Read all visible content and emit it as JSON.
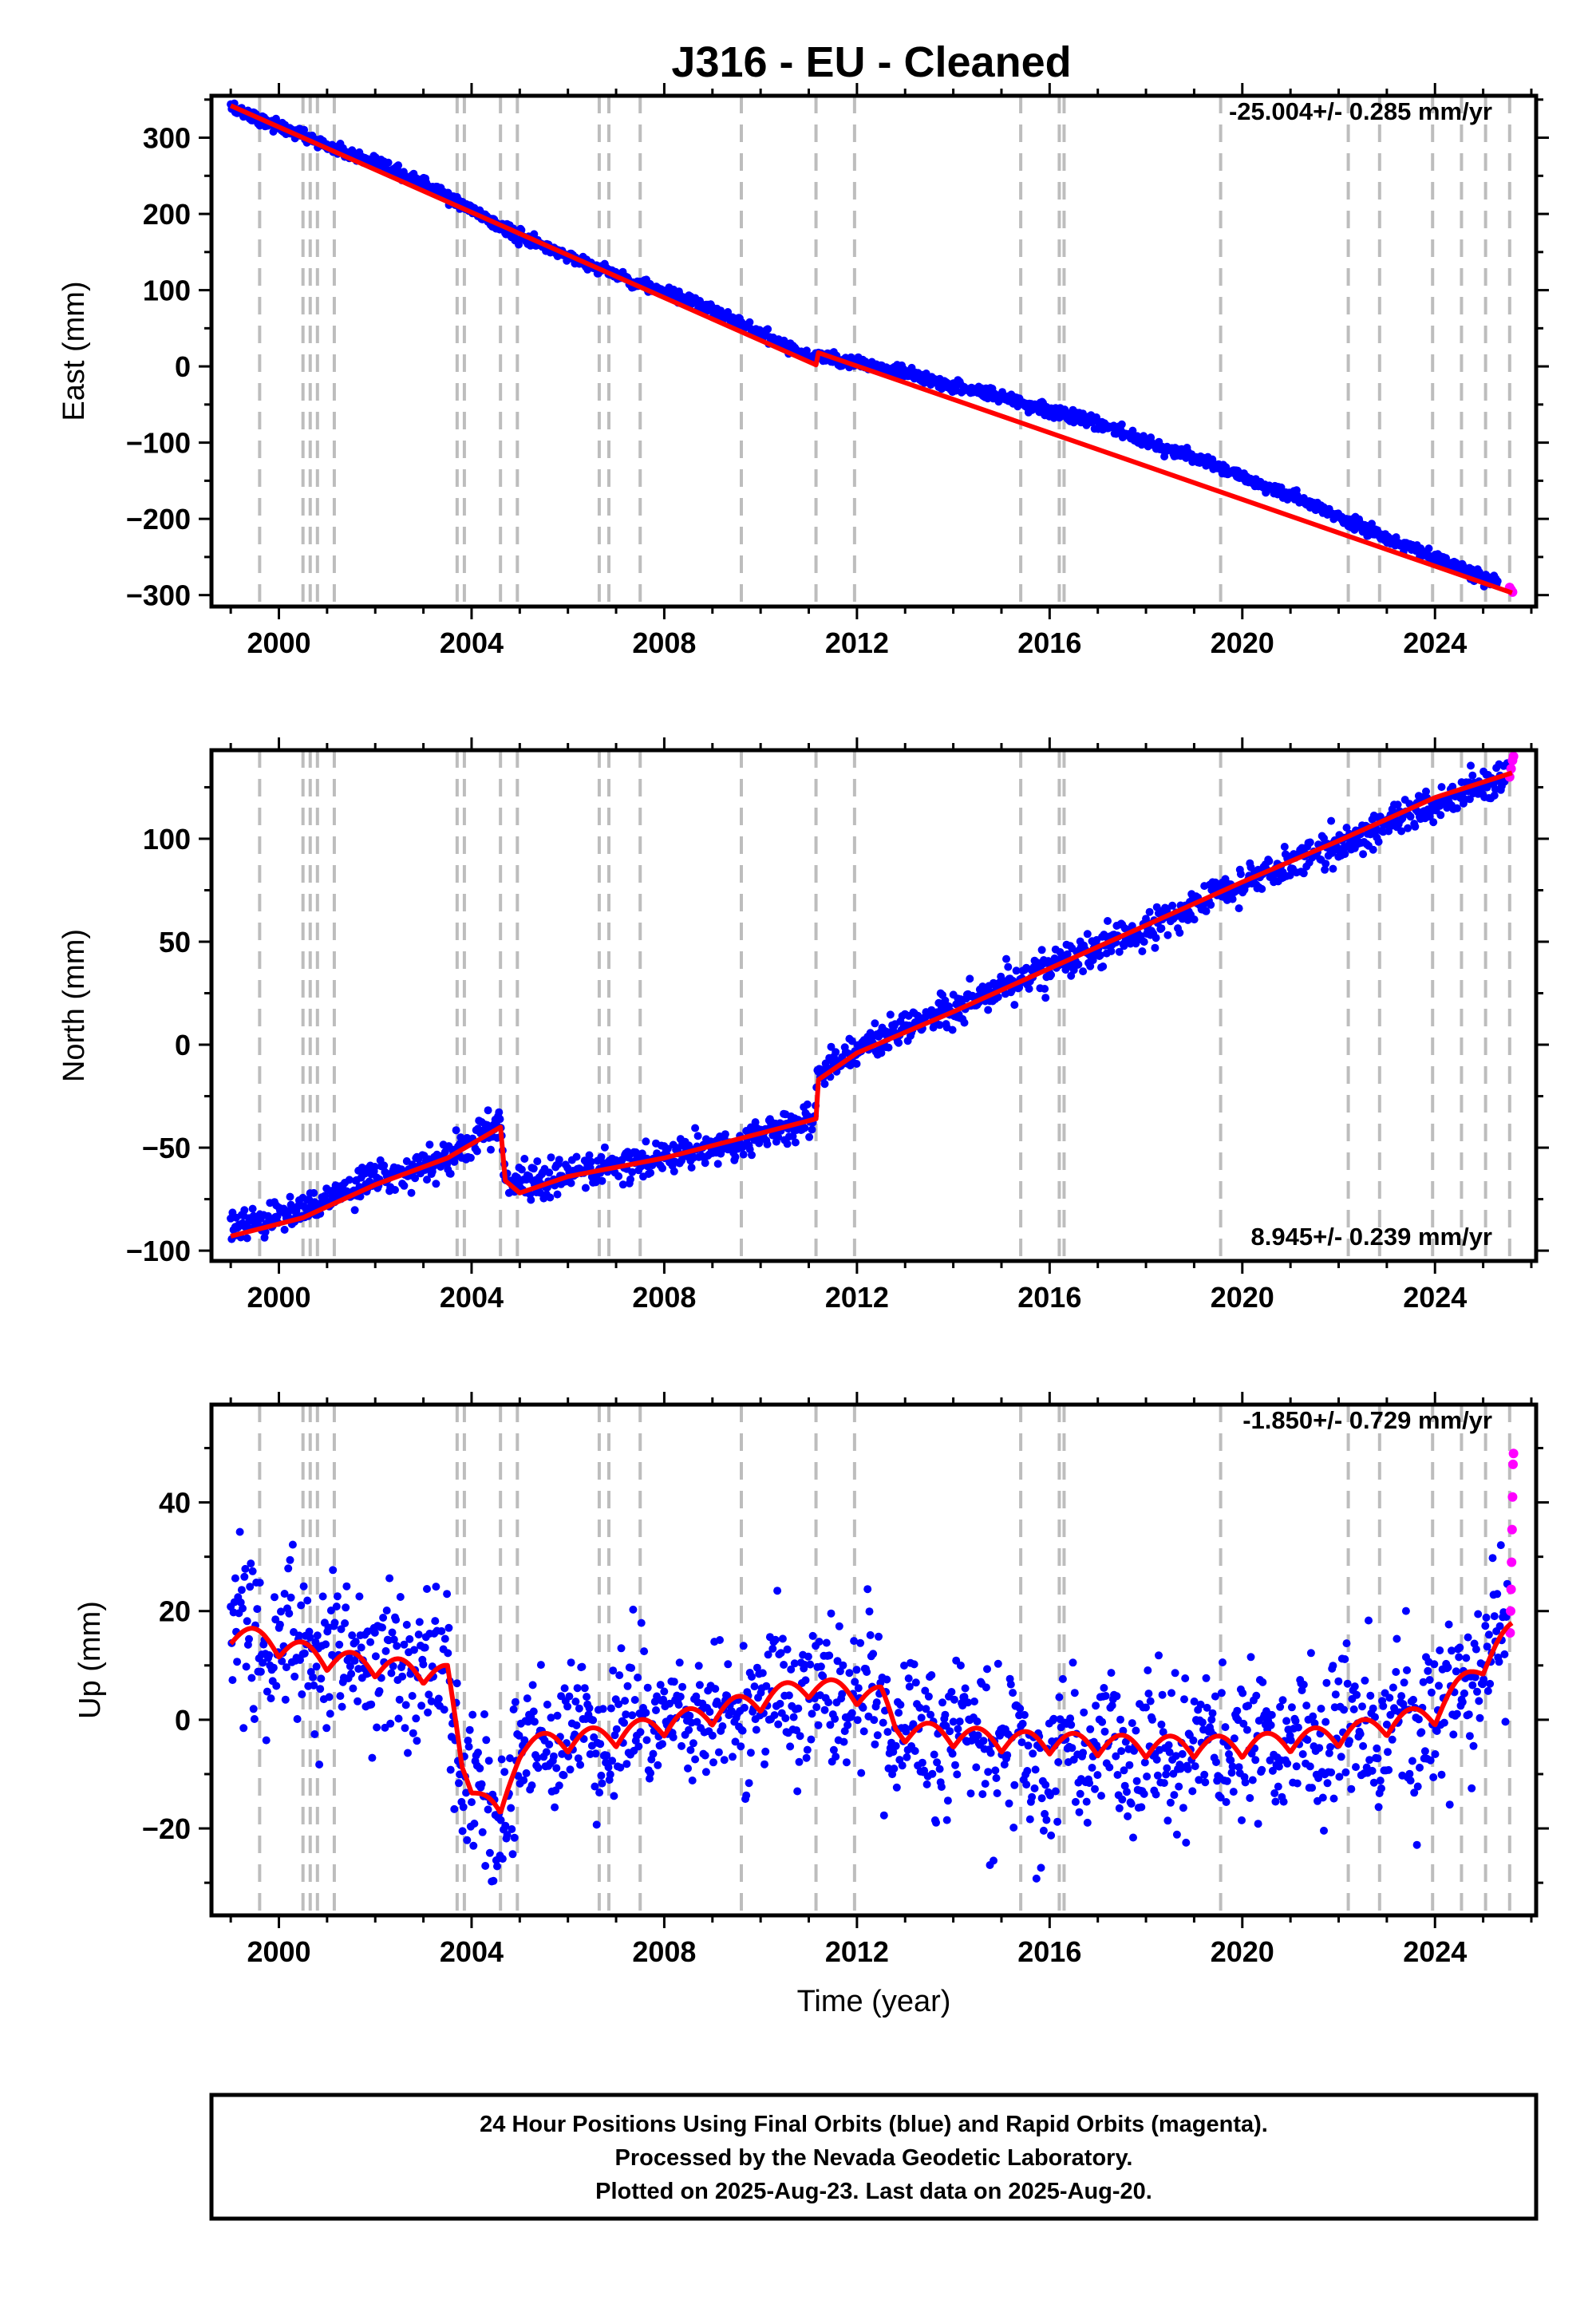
{
  "colors": {
    "final_orbits": "#0000ff",
    "rapid_orbits": "#ff00ff",
    "model": "#ff0000",
    "equipment_change": "#bdbdbd"
  },
  "footer": {
    "lines": [
      "24 Hour Positions Using Final Orbits (blue) and Rapid Orbits (magenta).",
      "Processed by the Nevada Geodetic Laboratory.",
      "Plotted on 2025-Aug-23. Last data on 2025-Aug-20."
    ]
  },
  "chart_data": [
    {
      "type": "scatter",
      "title": "J316  - EU - Cleaned",
      "ylabel": "East (mm)",
      "xlabel": "",
      "rate_label": "-25.004+/- 0.285 mm/yr",
      "rate_placement": "top-right",
      "xlim": [
        1998.6,
        2026.1
      ],
      "ylim": [
        -315,
        355
      ],
      "xticks": [
        2000,
        2004,
        2008,
        2012,
        2016,
        2020,
        2024
      ],
      "yticks": [
        -300,
        -200,
        -100,
        0,
        100,
        200,
        300
      ],
      "grid": false,
      "equipment_changes": [
        1999.6,
        2000.5,
        2000.65,
        2000.8,
        2001.15,
        2003.7,
        2003.85,
        2004.6,
        2004.95,
        2006.65,
        2006.85,
        2007.5,
        2009.6,
        2011.15,
        2011.95,
        2015.4,
        2016.2,
        2016.3,
        2019.55,
        2022.2,
        2022.85,
        2023.95,
        2024.55,
        2025.05,
        2025.55
      ],
      "offsets": [
        {
          "x": 2011.2,
          "dy": 30
        }
      ],
      "series": [
        {
          "name": "Final Orbits (blue)",
          "x": [
            1999.0,
            2001.0,
            2003.0,
            2005.0,
            2007.0,
            2009.0,
            2011.1,
            2011.2,
            2013.0,
            2015.0,
            2017.0,
            2019.0,
            2021.0,
            2023.0,
            2025.3
          ],
          "y": [
            340,
            290,
            240,
            170,
            120,
            75,
            10,
            15,
            -10,
            -40,
            -75,
            -120,
            -170,
            -225,
            -285
          ],
          "noise": 4
        },
        {
          "name": "Rapid Orbits (magenta)",
          "x": [
            2025.55,
            2025.58,
            2025.61
          ],
          "y": [
            -290,
            -293,
            -296
          ]
        },
        {
          "name": "Model",
          "x": [
            1999.0,
            2011.15,
            2011.2,
            2025.6
          ],
          "y": [
            342,
            2,
            18,
            -297
          ]
        }
      ]
    },
    {
      "type": "scatter",
      "ylabel": "North (mm)",
      "xlabel": "",
      "rate_label": "8.945+/- 0.239 mm/yr",
      "rate_placement": "bottom-right",
      "xlim": [
        1998.6,
        2026.1
      ],
      "ylim": [
        -105,
        143
      ],
      "xticks": [
        2000,
        2004,
        2008,
        2012,
        2016,
        2020,
        2024
      ],
      "yticks": [
        -100,
        -50,
        0,
        50,
        100
      ],
      "grid": false,
      "equipment_changes": [
        1999.6,
        2000.5,
        2000.65,
        2000.8,
        2001.15,
        2003.7,
        2003.85,
        2004.6,
        2004.95,
        2006.65,
        2006.85,
        2007.5,
        2009.6,
        2011.15,
        2011.95,
        2015.4,
        2016.2,
        2016.3,
        2019.55,
        2022.2,
        2022.85,
        2023.95,
        2024.55,
        2025.05,
        2025.55
      ],
      "series": [
        {
          "name": "Final Orbits (blue)",
          "x": [
            1999.0,
            2000.5,
            2002.0,
            2003.5,
            2004.6,
            2004.7,
            2006.0,
            2008.0,
            2010.0,
            2011.1,
            2011.2,
            2012.0,
            2014.0,
            2016.0,
            2018.0,
            2020.0,
            2022.0,
            2024.0,
            2025.5
          ],
          "y": [
            -88,
            -80,
            -65,
            -55,
            -37,
            -68,
            -63,
            -55,
            -45,
            -35,
            -15,
            -2,
            18,
            38,
            57,
            78,
            97,
            117,
            130
          ],
          "noise": 4
        },
        {
          "name": "Rapid Orbits (magenta)",
          "x": [
            2025.55,
            2025.58,
            2025.61,
            2025.63
          ],
          "y": [
            130,
            134,
            138,
            140
          ]
        },
        {
          "name": "Model",
          "x": [
            1999.0,
            2000.5,
            2002.0,
            2003.5,
            2004.6,
            2004.7,
            2005.0,
            2006.0,
            2008.0,
            2010.0,
            2011.15,
            2011.2,
            2012.0,
            2014.0,
            2016.0,
            2018.0,
            2020.0,
            2022.0,
            2024.0,
            2025.6
          ],
          "y": [
            -93,
            -84,
            -68,
            -55,
            -40,
            -66,
            -72,
            -64,
            -55,
            -43,
            -36,
            -17,
            -4,
            16,
            37,
            58,
            79,
            99,
            120,
            132
          ]
        }
      ]
    },
    {
      "type": "scatter",
      "ylabel": "Up (mm)",
      "xlabel": "Time (year)",
      "rate_label": "-1.850+/- 0.729 mm/yr",
      "rate_placement": "top-right",
      "xlim": [
        1998.6,
        2026.1
      ],
      "ylim": [
        -36,
        58
      ],
      "xticks": [
        2000,
        2004,
        2008,
        2012,
        2016,
        2020,
        2024
      ],
      "yticks": [
        -20,
        0,
        20,
        40
      ],
      "grid": false,
      "equipment_changes": [
        1999.6,
        2000.5,
        2000.65,
        2000.8,
        2001.15,
        2003.7,
        2003.85,
        2004.6,
        2004.95,
        2006.65,
        2006.85,
        2007.5,
        2009.6,
        2011.15,
        2011.95,
        2015.4,
        2016.2,
        2016.3,
        2019.55,
        2022.2,
        2022.85,
        2023.95,
        2024.55,
        2025.05,
        2025.55
      ],
      "series": [
        {
          "name": "Final Orbits (blue)",
          "x": [
            1999.0,
            2001.0,
            2003.5,
            2003.8,
            2004.6,
            2005.0,
            2007.0,
            2009.0,
            2011.0,
            2012.5,
            2012.8,
            2015.0,
            2018.0,
            2020.0,
            2022.0,
            2024.0,
            2025.5
          ],
          "y": [
            15,
            12,
            9,
            -10,
            -18,
            -5,
            -2,
            2,
            5,
            4,
            -2,
            -4,
            -6,
            -5,
            -4,
            0,
            15
          ],
          "noise": 7,
          "seasonal_amplitude": 3
        },
        {
          "name": "Rapid Orbits (magenta)",
          "x": [
            2025.56,
            2025.57,
            2025.58,
            2025.59,
            2025.6,
            2025.61,
            2025.62,
            2025.63
          ],
          "y": [
            16,
            20,
            24,
            29,
            35,
            41,
            47,
            49
          ]
        },
        {
          "name": "Model",
          "x": [
            1999.0,
            2001.0,
            2003.5,
            2003.8,
            2004.6,
            2005.0,
            2007.0,
            2009.0,
            2011.0,
            2012.5,
            2012.8,
            2015.0,
            2018.0,
            2020.0,
            2022.0,
            2024.0,
            2025.6
          ],
          "y": [
            16,
            11,
            8,
            -9,
            -19,
            -5,
            -3,
            1,
            6,
            4,
            -2,
            -4,
            -5,
            -5,
            -3,
            1,
            16
          ],
          "seasonal_amplitude": 4
        }
      ]
    }
  ]
}
